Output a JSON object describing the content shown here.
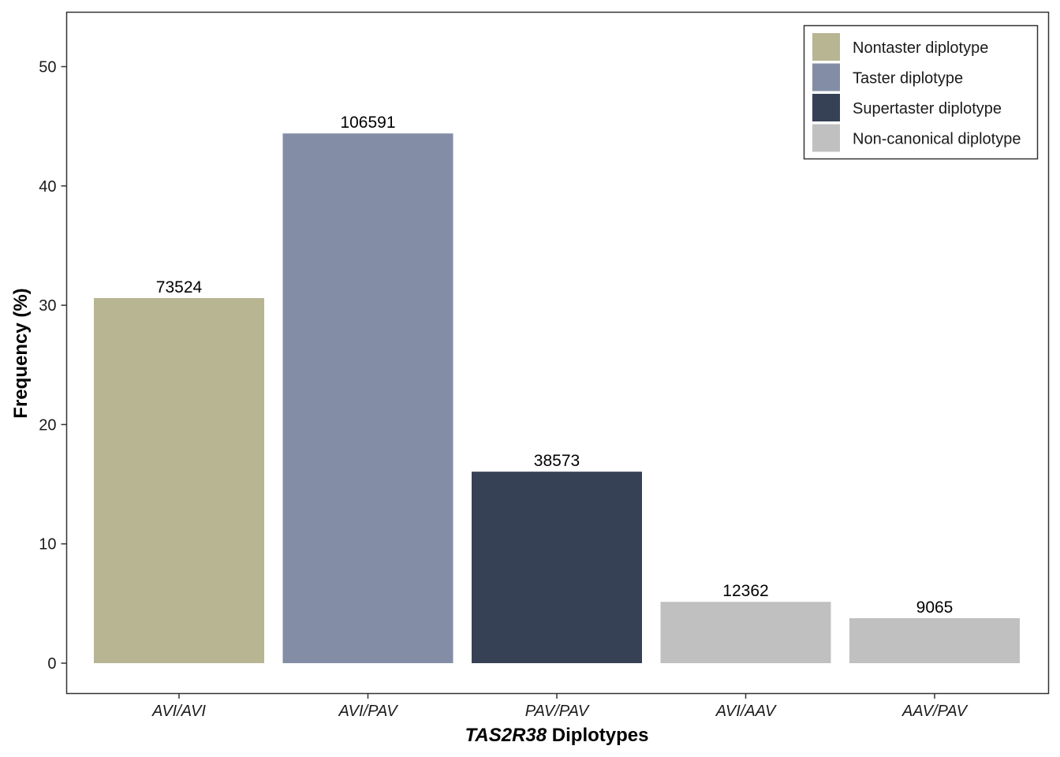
{
  "chart_data": {
    "type": "bar",
    "categories": [
      "AVI/AVI",
      "AVI/PAV",
      "PAV/PAV",
      "AVI/AAV",
      "AAV/PAV"
    ],
    "values": [
      30.6,
      44.4,
      16.05,
      5.14,
      3.77
    ],
    "data_labels": [
      "73524",
      "106591",
      "38573",
      "12362",
      "9065"
    ],
    "bar_groups": [
      "Nontaster diplotype",
      "Taster diplotype",
      "Supertaster diplotype",
      "Non-canonical diplotype",
      "Non-canonical diplotype"
    ],
    "ylabel": "Frequency (%)",
    "xlabel_italic": "TAS2R38",
    "xlabel_rest": " Diplotypes",
    "ylim": [
      0,
      52
    ],
    "yticks": [
      "0",
      "10",
      "20",
      "30",
      "40",
      "50"
    ],
    "ytick_values": [
      0,
      10,
      20,
      30,
      40,
      50
    ],
    "grid": false,
    "legend_position": "top-right",
    "legend": [
      {
        "label": "Nontaster diplotype",
        "color": "#b8b593"
      },
      {
        "label": "Taster diplotype",
        "color": "#838ea6"
      },
      {
        "label": "Supertaster diplotype",
        "color": "#364155"
      },
      {
        "label": "Non-canonical diplotype",
        "color": "#c0c0c0"
      }
    ]
  }
}
